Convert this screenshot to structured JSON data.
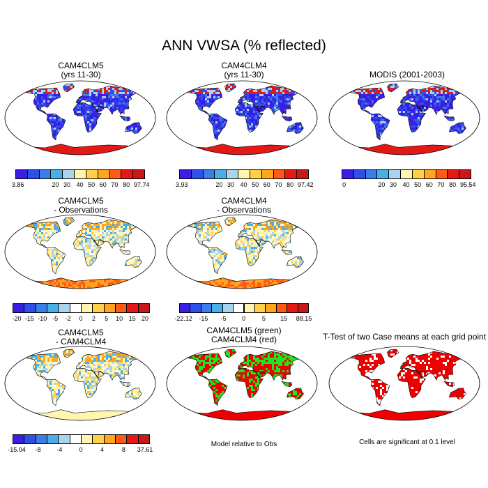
{
  "title": "ANN VWSA (% reflected)",
  "colors": {
    "abs": [
      "#3a1ee6",
      "#2f50e8",
      "#3a7ee8",
      "#4aaee8",
      "#a8d4ee",
      "#fff5b0",
      "#ffd048",
      "#ffa51e",
      "#ff5a18",
      "#e41814",
      "#c61a1a"
    ],
    "diff": [
      "#3a1ee6",
      "#2f50e8",
      "#3a7ee8",
      "#4aaee8",
      "#a8d4ee",
      "#ffffff",
      "#fff5b0",
      "#ffd048",
      "#ffa51e",
      "#ff5a18",
      "#e41814",
      "#c61a1a"
    ],
    "green": "#1ee61e",
    "red": "#ee0000"
  },
  "panels": [
    {
      "id": "p1",
      "title": [
        "CAM4CLM5",
        "(yrs 11-30)"
      ],
      "style": "abs",
      "labels": [
        "3.86",
        "20",
        "30",
        "40",
        "50",
        "60",
        "70",
        "80",
        "97.74"
      ]
    },
    {
      "id": "p2",
      "title": [
        "CAM4CLM4",
        "(yrs 11-30)"
      ],
      "style": "abs",
      "labels": [
        "3.93",
        "20",
        "30",
        "40",
        "50",
        "60",
        "70",
        "80",
        "97.42"
      ]
    },
    {
      "id": "p3",
      "title": [
        "MODIS (2001-2003)"
      ],
      "style": "abs",
      "labels": [
        "0",
        "20",
        "30",
        "40",
        "50",
        "60",
        "70",
        "80",
        "95.54"
      ]
    },
    {
      "id": "p4",
      "title": [
        "CAM4CLM5",
        "- Observations"
      ],
      "style": "diff",
      "labels": [
        "-20",
        "-15",
        "-10",
        "-5",
        "-2",
        "0",
        "2",
        "5",
        "10",
        "15",
        "20"
      ]
    },
    {
      "id": "p5",
      "title": [
        "CAM4CLM4",
        "- Observations"
      ],
      "style": "diff",
      "labels": [
        "-22.12",
        "-15",
        "-5",
        "0",
        "5",
        "15",
        "88.15"
      ]
    },
    {
      "id": "p6",
      "title": [
        "CAM4CLM5",
        "- CAM4CLM4"
      ],
      "style": "diff",
      "labels": [
        "-15.04",
        "-8",
        "-4",
        "0",
        "4",
        "8",
        "37.61"
      ]
    },
    {
      "id": "p7",
      "title": [
        "CAM4CLM5 (green)",
        "CAM4CLM4 (red)"
      ],
      "style": "compare"
    },
    {
      "id": "p8",
      "title": [
        "T-Test of two Case means at each grid point"
      ],
      "style": "ttest"
    }
  ],
  "notes": {
    "p7": "Model relative to Obs",
    "p8": "Cells are significant at 0.1 level"
  }
}
